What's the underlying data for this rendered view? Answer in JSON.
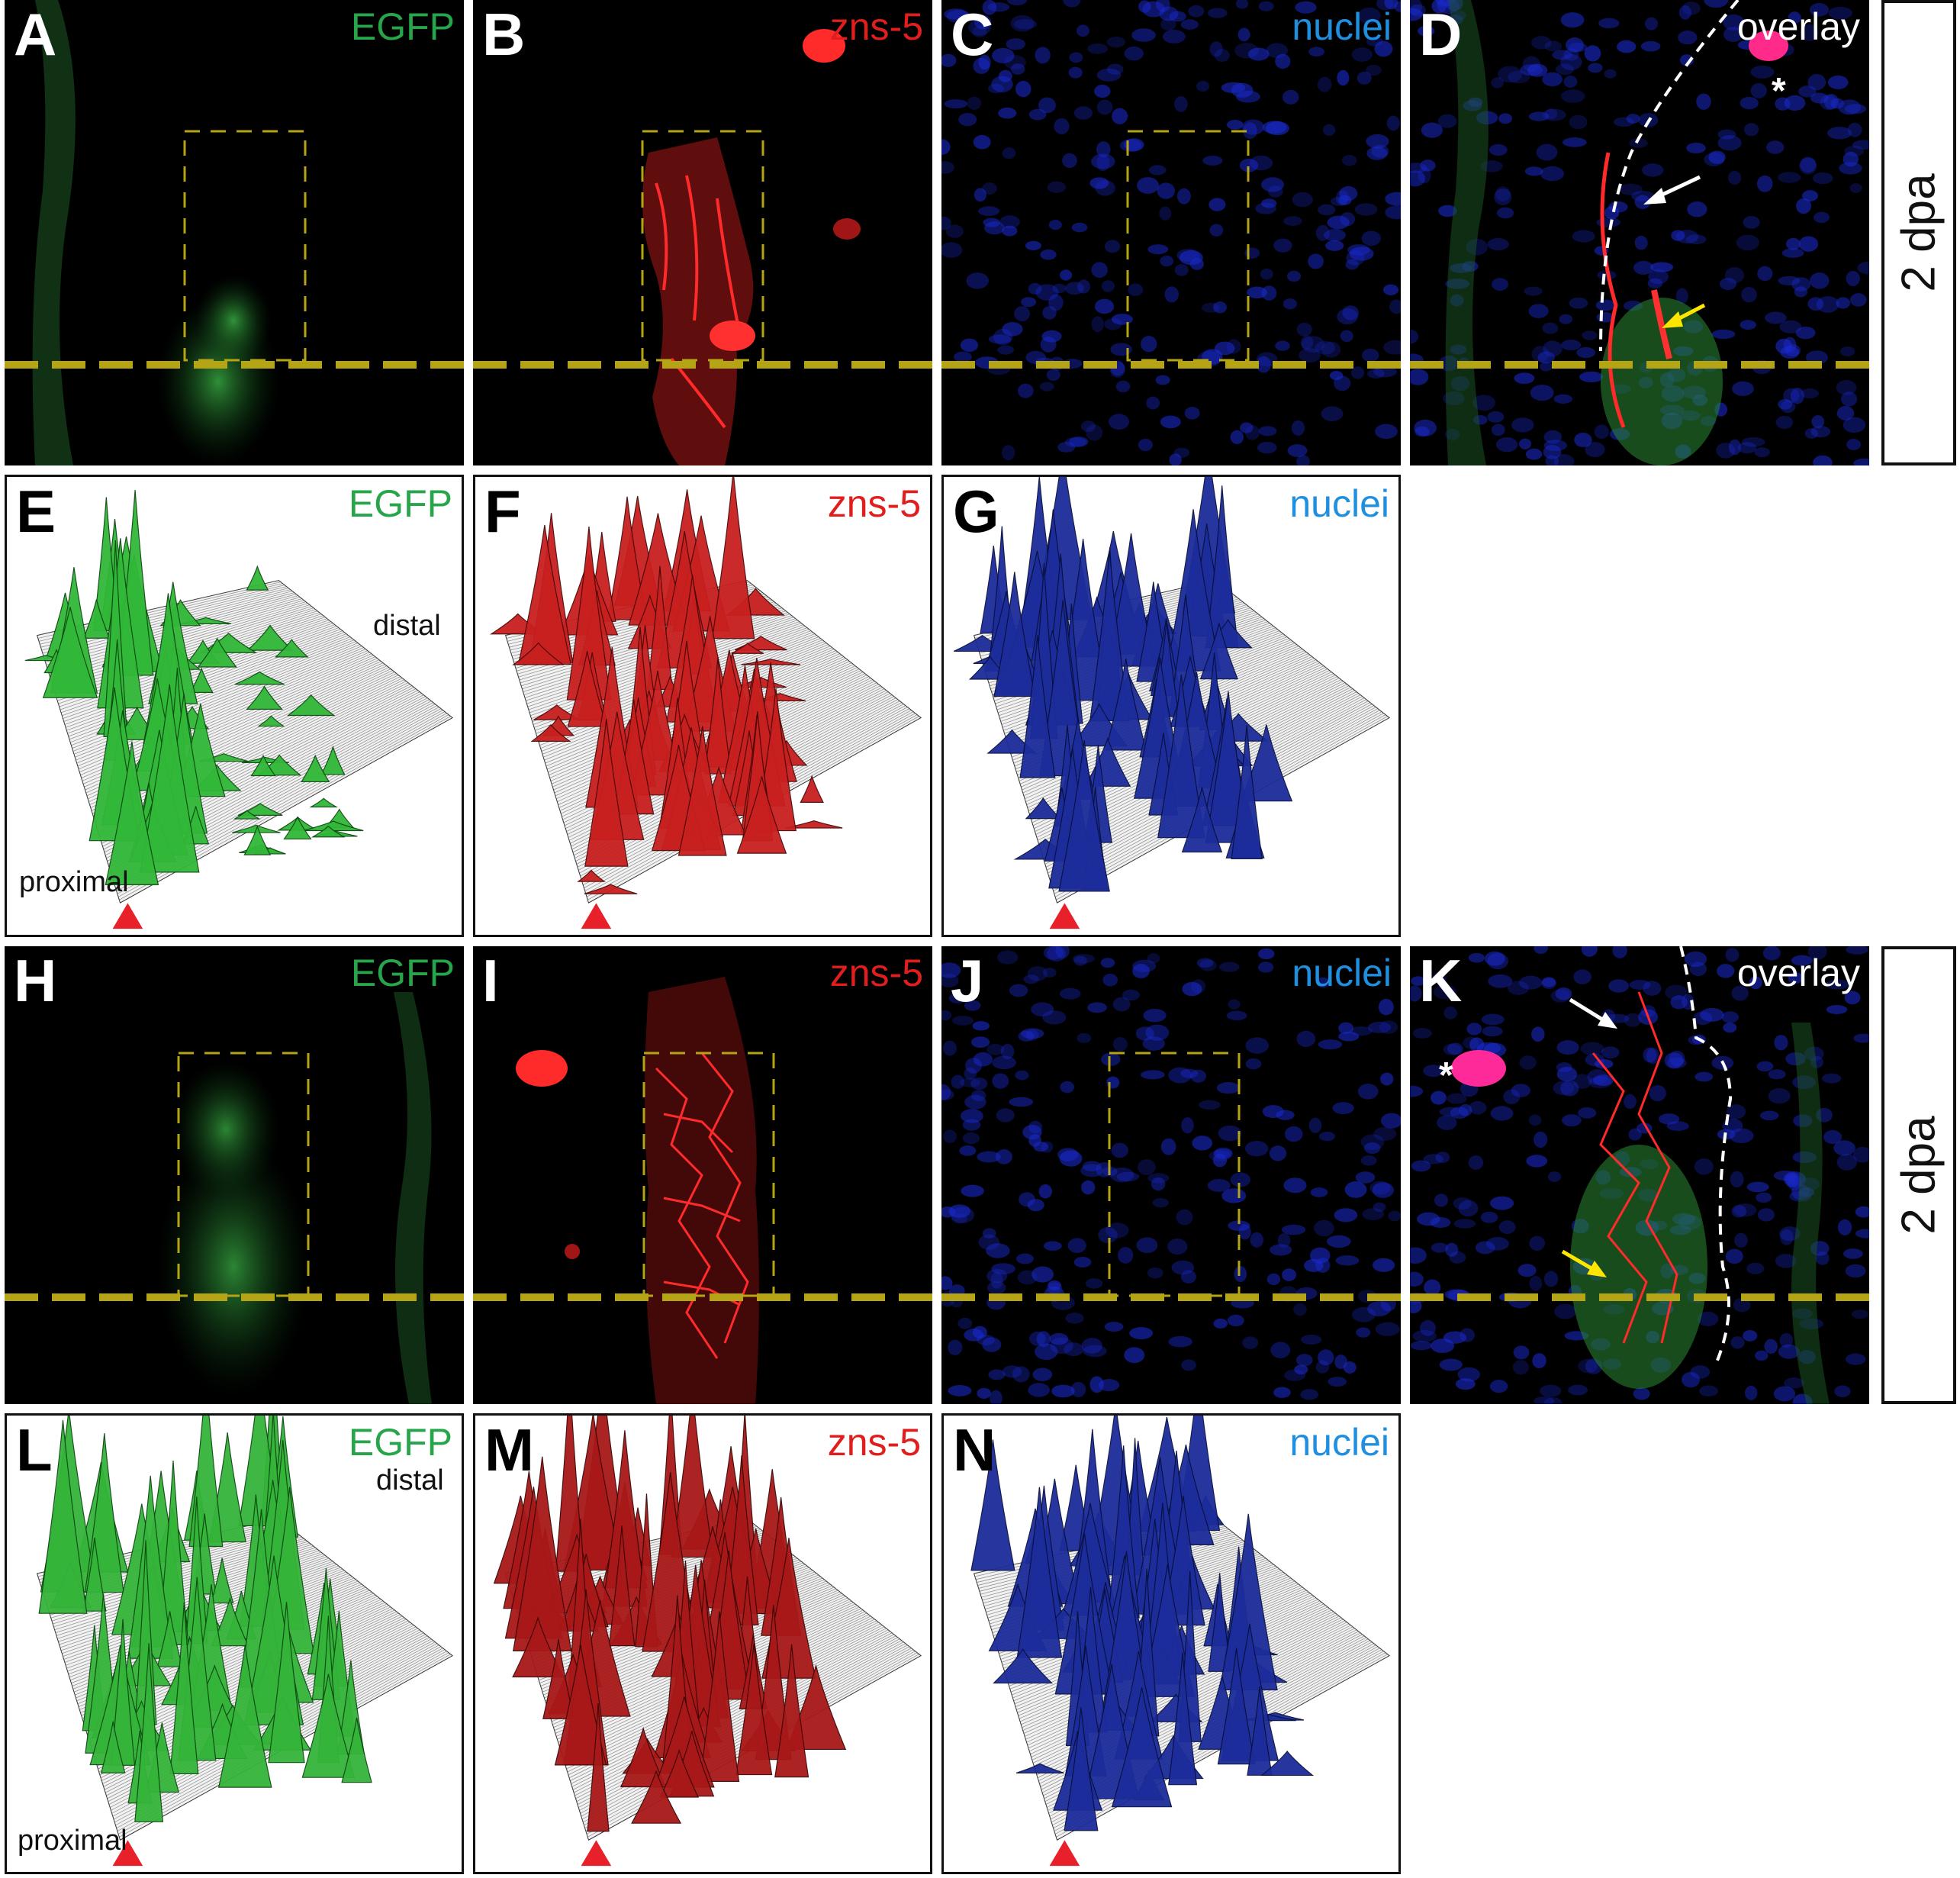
{
  "colors": {
    "egfp": "#27a54a",
    "zns5": "#e11e1e",
    "nuclei": "#1f8fe0",
    "overlay": "#ffffff",
    "amputation_line": "#b5a516",
    "arrowhead": "#e8202a",
    "green_surface": "#3bbf3b",
    "red_surface": "#c0201f",
    "blue_surface": "#1c2c9a"
  },
  "rows": [
    {
      "type": "microscopy",
      "side_label": "2 dpa",
      "panels": [
        {
          "letter": "A",
          "channel": "EGFP",
          "color": "egfp"
        },
        {
          "letter": "B",
          "channel": "zns-5",
          "color": "zns5"
        },
        {
          "letter": "C",
          "channel": "nuclei",
          "color": "nuclei"
        },
        {
          "letter": "D",
          "channel": "overlay",
          "color": "overlay",
          "marker": "*"
        }
      ]
    },
    {
      "type": "surface",
      "panels": [
        {
          "letter": "E",
          "channel": "EGFP",
          "color": "egfp",
          "labels": {
            "proximal": "proximal",
            "distal": "distal"
          }
        },
        {
          "letter": "F",
          "channel": "zns-5",
          "color": "zns5"
        },
        {
          "letter": "G",
          "channel": "nuclei",
          "color": "nuclei"
        }
      ]
    },
    {
      "type": "microscopy",
      "side_label": "2 dpa",
      "panels": [
        {
          "letter": "H",
          "channel": "EGFP",
          "color": "egfp"
        },
        {
          "letter": "I",
          "channel": "zns-5",
          "color": "zns5"
        },
        {
          "letter": "J",
          "channel": "nuclei",
          "color": "nuclei"
        },
        {
          "letter": "K",
          "channel": "overlay",
          "color": "overlay",
          "marker": "*"
        }
      ]
    },
    {
      "type": "surface",
      "panels": [
        {
          "letter": "L",
          "channel": "EGFP",
          "color": "egfp",
          "labels": {
            "proximal": "proximal",
            "distal": "distal"
          }
        },
        {
          "letter": "M",
          "channel": "zns-5",
          "color": "zns5"
        },
        {
          "letter": "N",
          "channel": "nuclei",
          "color": "nuclei"
        }
      ]
    }
  ]
}
